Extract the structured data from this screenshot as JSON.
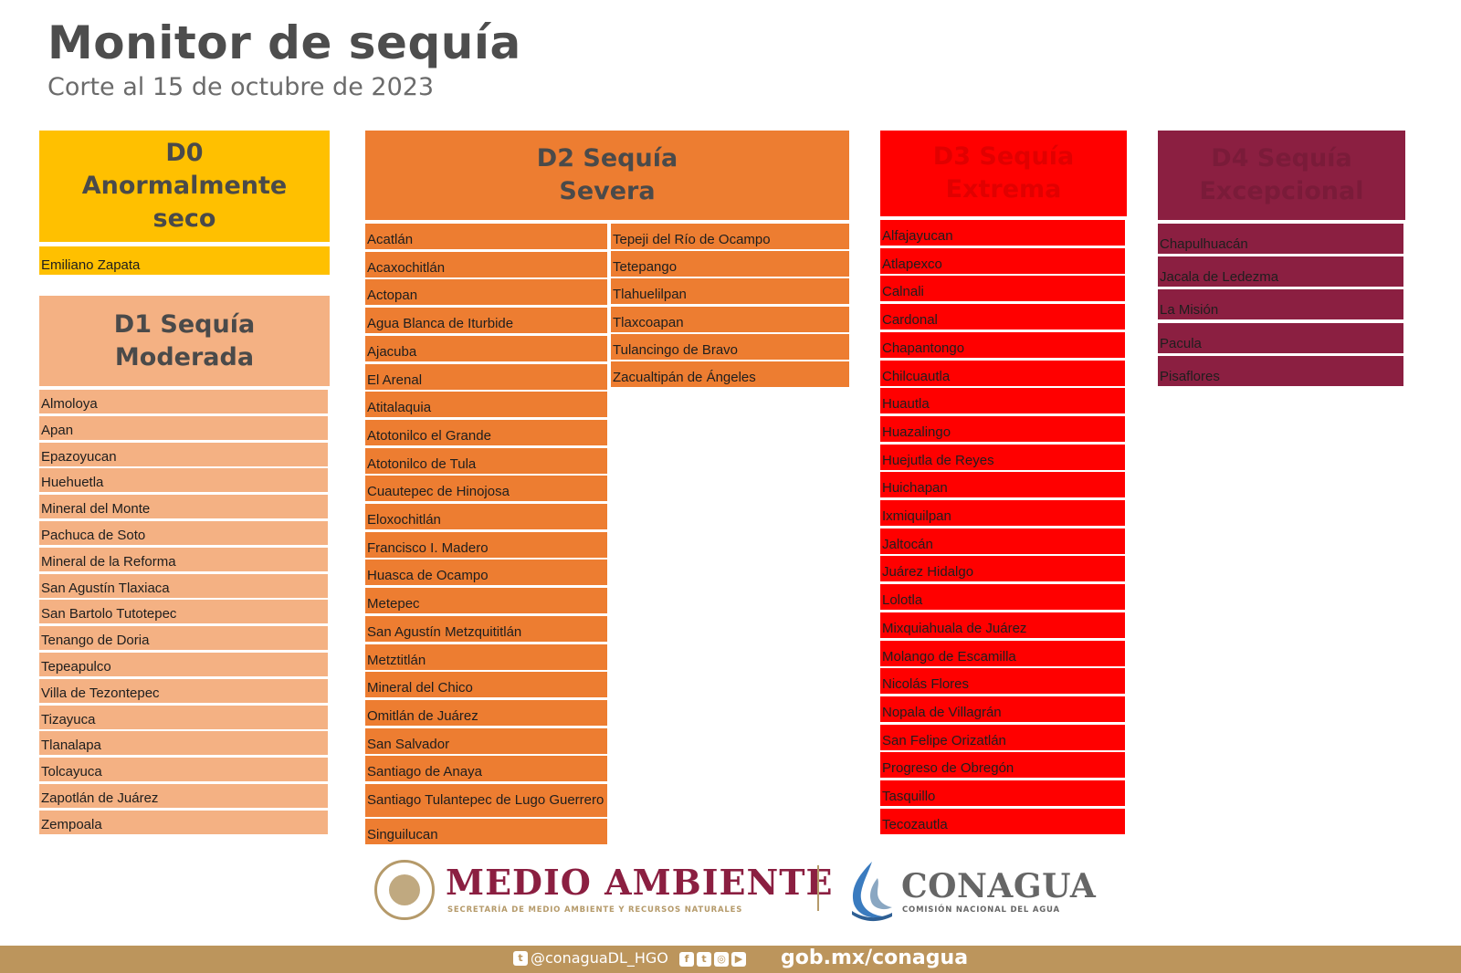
{
  "header": {
    "title": "Monitor de sequía",
    "subtitle": "Corte al 15 de octubre de 2023"
  },
  "categories": {
    "d0": {
      "label": "D0\nAnormalmente\nseco",
      "color": "#ffc000",
      "items": [
        "Emiliano Zapata"
      ]
    },
    "d1": {
      "label": "D1 Sequía\nModerada",
      "color": "#f4b183",
      "items": [
        "Almoloya",
        "Apan",
        "Epazoyucan",
        "Huehuetla",
        "Mineral del Monte",
        "Pachuca de Soto",
        "Mineral de la Reforma",
        "San Agustín Tlaxiaca",
        "San Bartolo Tutotepec",
        "Tenango de Doria",
        "Tepeapulco",
        "Villa de Tezontepec",
        "Tizayuca",
        "Tlanalapa",
        "Tolcayuca",
        "Zapotlán de Juárez",
        "Zempoala"
      ]
    },
    "d2": {
      "label": "D2 Sequía\nSevera",
      "color": "#ed7d31",
      "items_col1": [
        "Acatlán",
        "Acaxochitlán",
        "Actopan",
        "Agua Blanca de Iturbide",
        "Ajacuba",
        "El Arenal",
        "Atitalaquia",
        "Atotonilco el Grande",
        "Atotonilco de Tula",
        "Cuautepec de Hinojosa",
        "Eloxochitlán",
        "Francisco I. Madero",
        "Huasca de Ocampo",
        "Metepec",
        "San Agustín Metzquititlán",
        "Metztitlán",
        "Mineral del Chico",
        "Omitlán de Juárez",
        "San Salvador",
        "Santiago de Anaya",
        "Santiago Tulantepec de Lugo Guerrero",
        "Singuilucan"
      ],
      "items_col2": [
        "Tepeji del Río de Ocampo",
        "Tetepango",
        "Tlahuelilpan",
        "Tlaxcoapan",
        "Tulancingo de Bravo",
        "Zacualtipán de Ángeles"
      ]
    },
    "d3": {
      "label": "D3 Sequía\nExtrema",
      "color": "#ff0000",
      "items": [
        "Alfajayucan",
        "Atlapexco",
        "Calnali",
        "Cardonal",
        "Chapantongo",
        "Chilcuautla",
        "Huautla",
        "Huazalingo",
        "Huejutla de Reyes",
        "Huichapan",
        "Ixmiquilpan",
        "Jaltocán",
        "Juárez Hidalgo",
        "Lolotla",
        "Mixquiahuala de Juárez",
        "Molango de Escamilla",
        "Nicolás Flores",
        "Nopala de Villagrán",
        "San Felipe Orizatlán",
        "Progreso de Obregón",
        "Tasquillo",
        "Tecozautla"
      ]
    },
    "d4": {
      "label": "D4 Sequía\nExcepcional",
      "color": "#8b1f41",
      "items": [
        "Chapulhuacán",
        "Jacala de Ledezma",
        "La Misión",
        "Pacula",
        "Pisaflores"
      ]
    }
  },
  "footer": {
    "medio_ambiente": "MEDIO AMBIENTE",
    "medio_ambiente_sub": "SECRETARÍA DE MEDIO AMBIENTE Y RECURSOS NATURALES",
    "conagua": "CONAGUA",
    "conagua_sub": "COMISIÓN NACIONAL DEL AGUA",
    "handle": "@conaguaDL_HGO",
    "website": "gob.mx/conagua",
    "social_icons": [
      "facebook-icon",
      "twitter-icon",
      "instagram-icon",
      "youtube-icon"
    ]
  }
}
